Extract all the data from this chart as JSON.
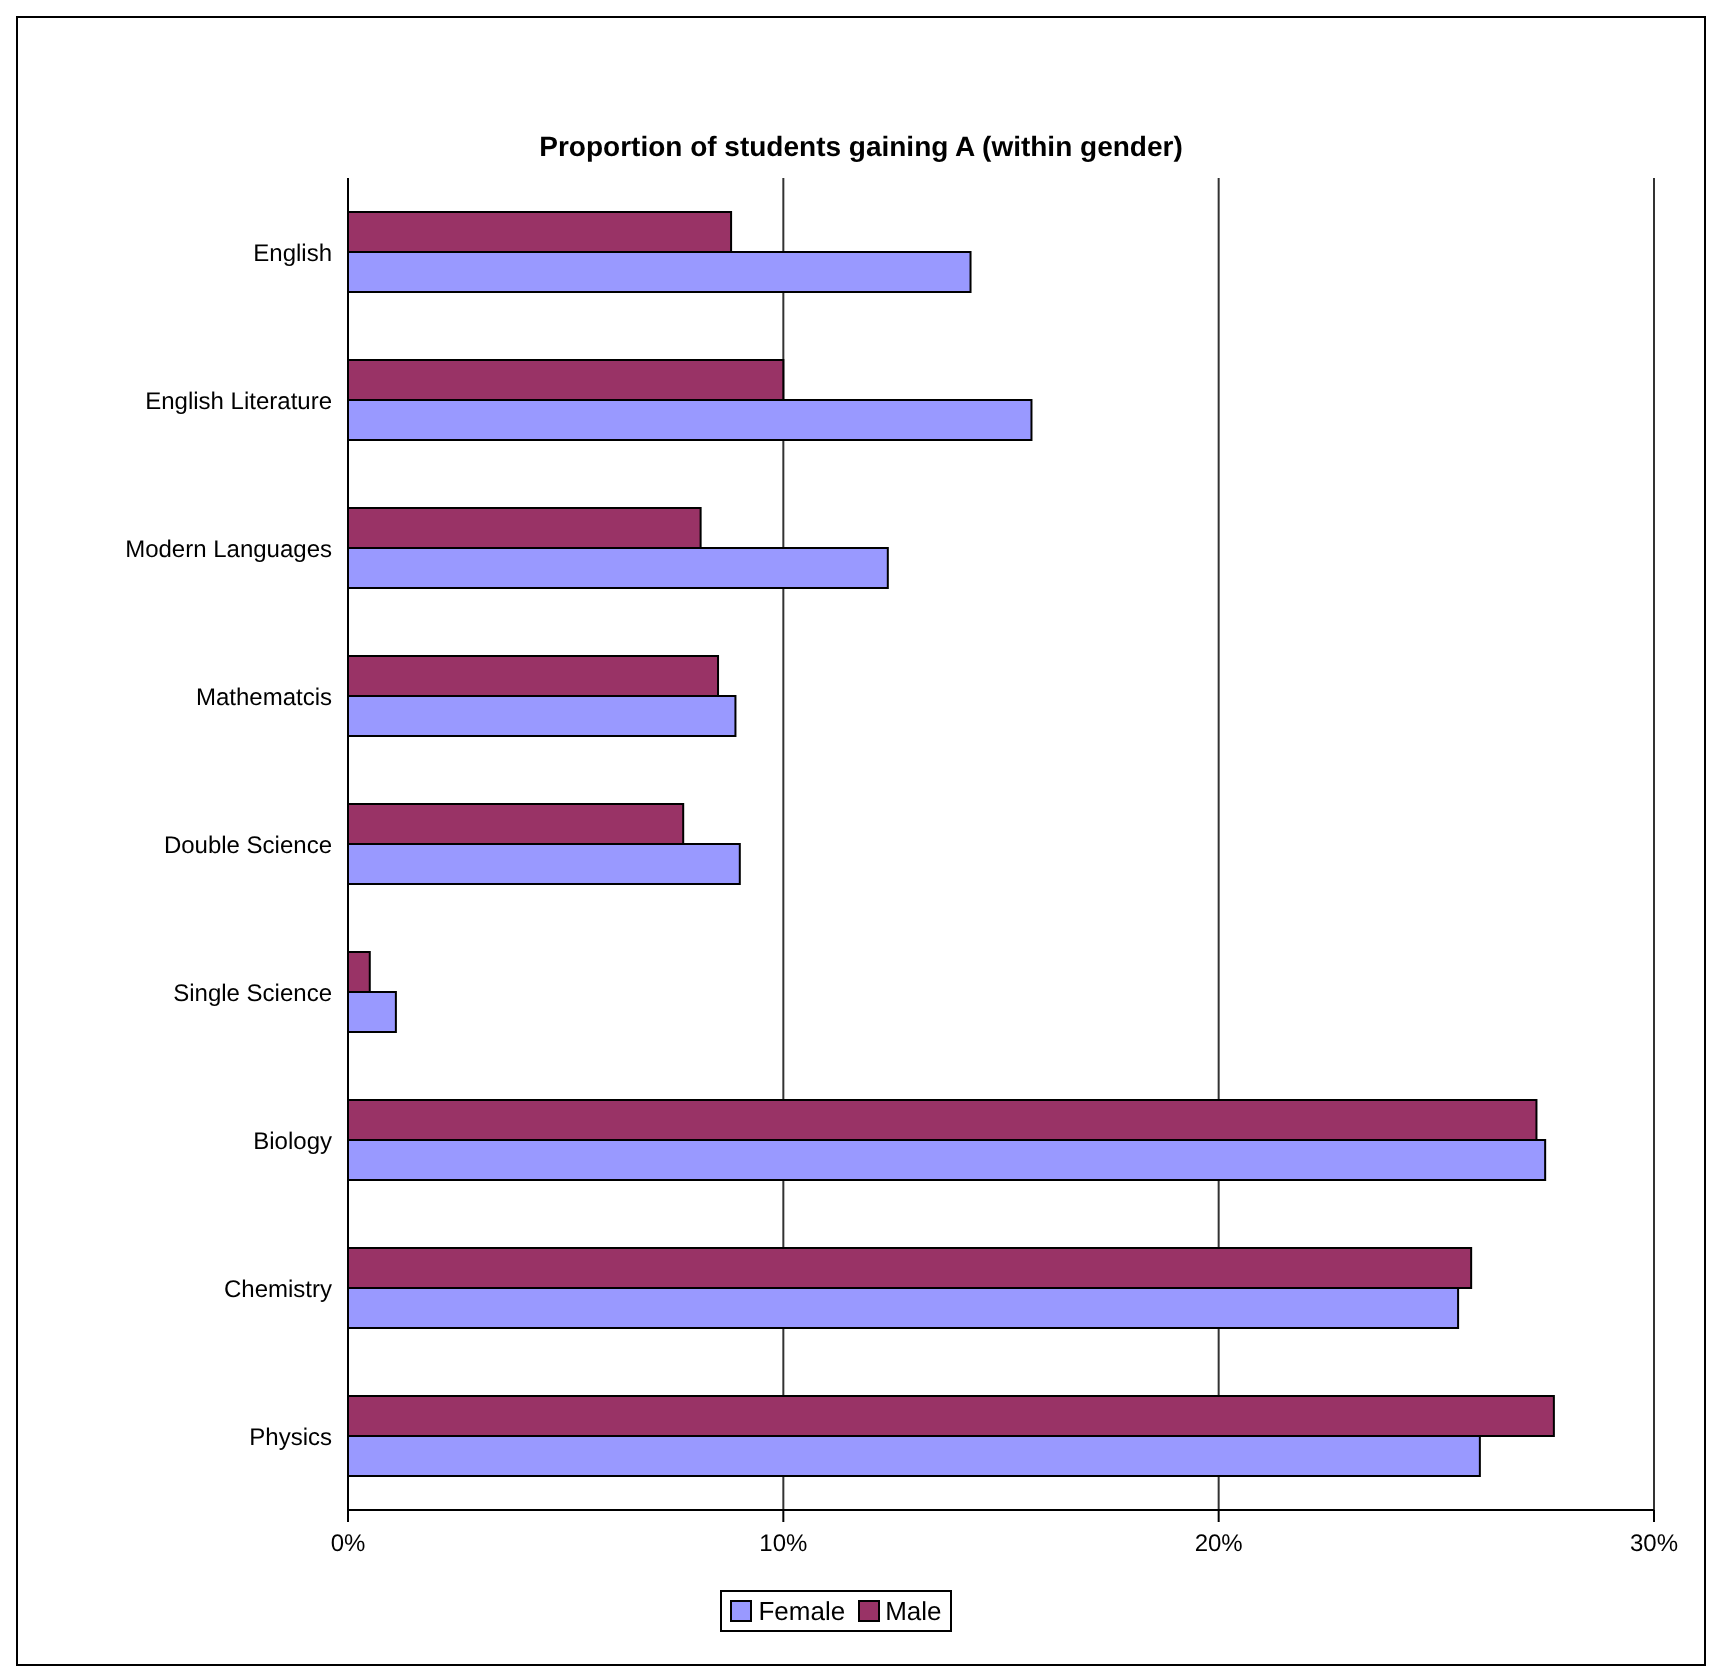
{
  "chart_data": {
    "type": "bar",
    "orientation": "horizontal",
    "title": "Proportion of students gaining A (within gender)",
    "categories": [
      "English",
      "English Literature",
      "Modern Languages",
      "Mathematcis",
      "Double Science",
      "Single Science",
      "Biology",
      "Chemistry",
      "Physics"
    ],
    "series": [
      {
        "name": "Female",
        "color": "#9999ff",
        "values": [
          14.3,
          15.7,
          12.4,
          8.9,
          9.0,
          1.1,
          27.5,
          25.5,
          26.0
        ]
      },
      {
        "name": "Male",
        "color": "#993366",
        "values": [
          8.8,
          10.0,
          8.1,
          8.5,
          7.7,
          0.5,
          27.3,
          25.8,
          27.7
        ]
      }
    ],
    "xlim": [
      0,
      30
    ],
    "xticks": [
      {
        "value": 0,
        "label": "0%"
      },
      {
        "value": 10,
        "label": "10%"
      },
      {
        "value": 20,
        "label": "20%"
      },
      {
        "value": 30,
        "label": "30%"
      }
    ],
    "grid": "x",
    "legend": "bottom"
  }
}
